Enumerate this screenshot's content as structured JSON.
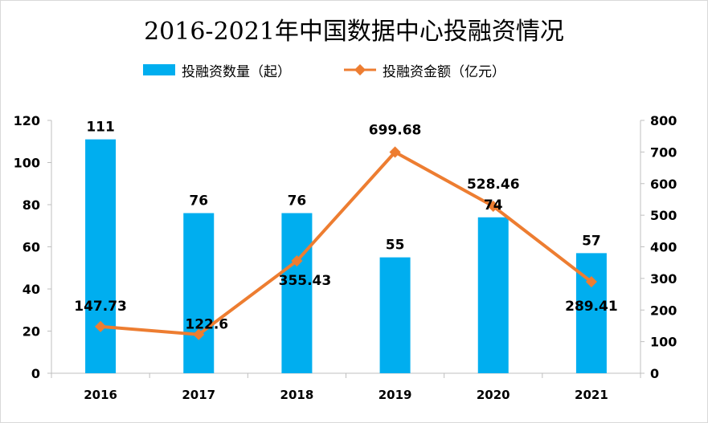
{
  "chart_data": {
    "type": "bar+line",
    "title": "2016-2021年中国数据中心投融资情况",
    "categories": [
      "2016",
      "2017",
      "2018",
      "2019",
      "2020",
      "2021"
    ],
    "series": [
      {
        "name": "投融资数量（起）",
        "type": "bar",
        "axis": "left",
        "color": "#00aeef",
        "values": [
          111,
          76,
          76,
          55,
          74,
          57
        ],
        "labels": [
          "111",
          "76",
          "76",
          "55",
          "74",
          "57"
        ]
      },
      {
        "name": "投融资金额（亿元）",
        "type": "line",
        "axis": "right",
        "color": "#ed7d31",
        "values": [
          147.73,
          122.6,
          355.43,
          699.68,
          528.46,
          289.41
        ],
        "labels": [
          "147.73",
          "122.6",
          "355.43",
          "699.68",
          "528.46",
          "289.41"
        ]
      }
    ],
    "y_left": {
      "ylim": [
        0,
        120
      ],
      "ticks": [
        "0",
        "20",
        "40",
        "60",
        "80",
        "100",
        "120"
      ]
    },
    "y_right": {
      "ylim": [
        0,
        800
      ],
      "ticks": [
        "0",
        "100",
        "200",
        "300",
        "400",
        "500",
        "600",
        "700",
        "800"
      ]
    },
    "legend_position": "top",
    "grid": false
  }
}
